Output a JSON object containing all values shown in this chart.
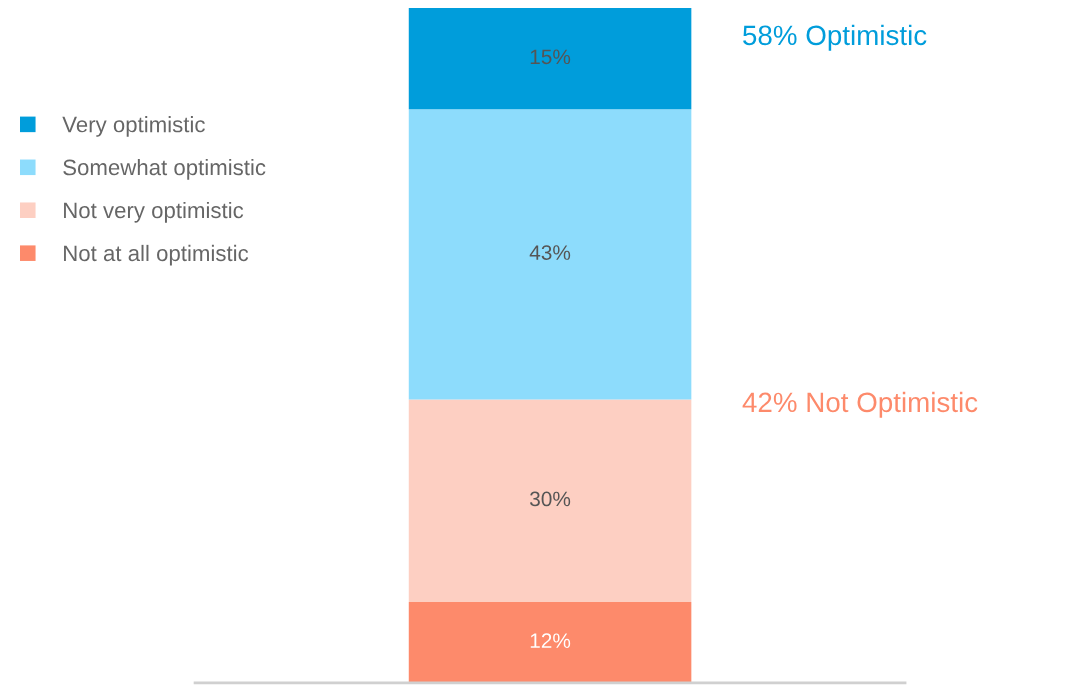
{
  "chart_data": {
    "type": "bar",
    "stacked": true,
    "categories": [
      null
    ],
    "series": [
      {
        "name": "Not at all optimistic",
        "color": "#fd8a6b",
        "values": [
          12
        ],
        "value_labels": [
          "12%"
        ]
      },
      {
        "name": "Not very optimistic",
        "color": "#fdcfc2",
        "values": [
          30
        ],
        "value_labels": [
          "30%"
        ]
      },
      {
        "name": "Somewhat optimistic",
        "color": "#8ddcfc",
        "values": [
          43
        ],
        "value_labels": [
          "43%"
        ]
      },
      {
        "name": "Very optimistic",
        "color": "#009ddb",
        "values": [
          15
        ],
        "value_labels": [
          "15%"
        ]
      }
    ],
    "legend": "top left",
    "annotations": [
      "58% Optimistic",
      "42% Not Optimistic"
    ]
  }
}
